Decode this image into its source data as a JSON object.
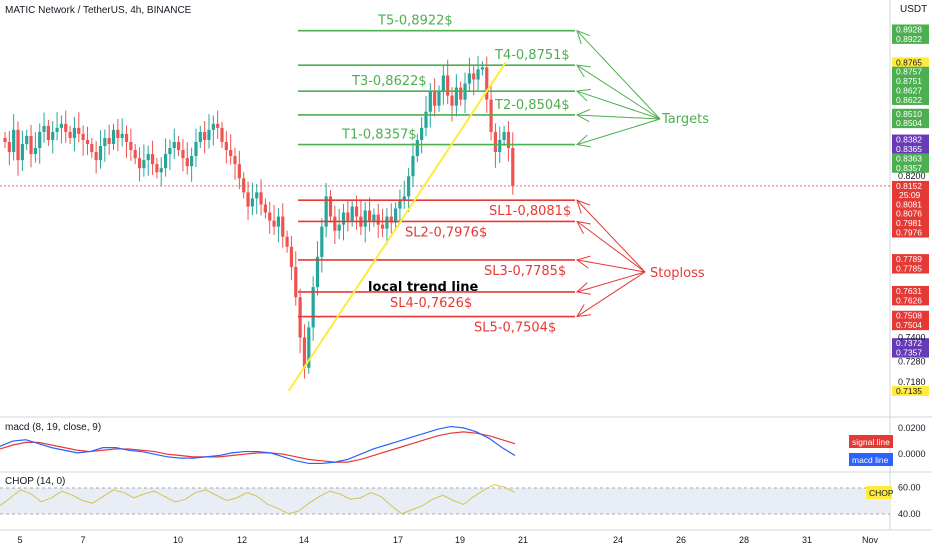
{
  "header": {
    "symbol_title": "MATIC Network / TetherUS, 4h, BINANCE",
    "currency": "USDT"
  },
  "colors": {
    "target": "#4caf50",
    "stop": "#e53935",
    "trend": "#ffeb3b",
    "candle_up": "#26a69a",
    "candle_down": "#ef5350",
    "signal_line": "#e53935",
    "macd_line": "#2962ff",
    "chop": "#d4c44e",
    "purple": "#673ab7",
    "yellow_tag": "#ffeb3b",
    "pane_bg": "#e9eef6"
  },
  "chart_data": [
    {
      "type": "line",
      "title": "",
      "y_range": [
        0.71,
        0.898
      ],
      "x_tick_labels": [
        "5",
        "7",
        "10",
        "12",
        "14",
        "17",
        "19",
        "21",
        "24",
        "26",
        "28",
        "31",
        "Nov"
      ],
      "y_tick_labels": [
        "0.8200",
        "0.7400",
        "0.7280",
        "0.7180"
      ],
      "price_tags": [
        {
          "text": "0.8928",
          "value": 0.8928,
          "color": "green"
        },
        {
          "text": "0.8922",
          "value": 0.8922,
          "color": "green"
        },
        {
          "text": "0.8765",
          "value": 0.8765,
          "color": "yellow"
        },
        {
          "text": "0.8757",
          "value": 0.8757,
          "color": "green"
        },
        {
          "text": "0.8751",
          "value": 0.8751,
          "color": "green"
        },
        {
          "text": "0.8627",
          "value": 0.8627,
          "color": "green"
        },
        {
          "text": "0.8622",
          "value": 0.8622,
          "color": "green"
        },
        {
          "text": "0.8510",
          "value": 0.851,
          "color": "green"
        },
        {
          "text": "0.8504",
          "value": 0.8504,
          "color": "green"
        },
        {
          "text": "0.8382",
          "value": 0.8382,
          "color": "purple"
        },
        {
          "text": "0.8365",
          "value": 0.8365,
          "color": "purple"
        },
        {
          "text": "0.8363",
          "value": 0.8363,
          "color": "green"
        },
        {
          "text": "0.8357",
          "value": 0.8357,
          "color": "green"
        },
        {
          "text": "0.8152",
          "sub": "25:09",
          "value": 0.8152,
          "color": "red"
        },
        {
          "text": "0.8081",
          "value": 0.8081,
          "color": "red"
        },
        {
          "text": "0.8076",
          "value": 0.8076,
          "color": "red"
        },
        {
          "text": "0.7981",
          "value": 0.7981,
          "color": "red"
        },
        {
          "text": "0.7976",
          "value": 0.7976,
          "color": "red"
        },
        {
          "text": "0.7789",
          "value": 0.7789,
          "color": "red"
        },
        {
          "text": "0.7785",
          "value": 0.7785,
          "color": "red"
        },
        {
          "text": "0.7631",
          "value": 0.7631,
          "color": "red"
        },
        {
          "text": "0.7626",
          "value": 0.7626,
          "color": "red"
        },
        {
          "text": "0.7508",
          "value": 0.7508,
          "color": "red"
        },
        {
          "text": "0.7504",
          "value": 0.7504,
          "color": "red"
        },
        {
          "text": "0.7372",
          "value": 0.7372,
          "color": "purple"
        },
        {
          "text": "0.7357",
          "value": 0.7357,
          "color": "purple"
        },
        {
          "text": "0.7135",
          "value": 0.7135,
          "color": "yellow"
        }
      ],
      "targets": [
        {
          "label": "T1-0,8357$",
          "value": 0.8357
        },
        {
          "label": "T2-0,8504$",
          "value": 0.8504
        },
        {
          "label": "T3-0,8622$",
          "value": 0.8622
        },
        {
          "label": "T4-0,8751$",
          "value": 0.8751
        },
        {
          "label": "T5-0,8922$",
          "value": 0.8922
        }
      ],
      "stoplosses": [
        {
          "label": "SL1-0,8081$",
          "value": 0.8081
        },
        {
          "label": "SL2-0,7976$",
          "value": 0.7976
        },
        {
          "label": "SL3-0,7785$",
          "value": 0.7785
        },
        {
          "label": "SL4-0,7626$",
          "value": 0.7626
        },
        {
          "label": "SL5-0,7504$",
          "value": 0.7504
        }
      ],
      "callouts": {
        "targets": "Targets",
        "stoploss": "Stoploss",
        "trend": "local trend line"
      },
      "trend_line": {
        "from": [
          40,
          0.7135
        ],
        "to": [
          67,
          0.8765
        ]
      },
      "current_price": 0.8152,
      "candles_close": [
        0.837,
        0.832,
        0.843,
        0.828,
        0.836,
        0.84,
        0.831,
        0.834,
        0.842,
        0.845,
        0.838,
        0.842,
        0.844,
        0.846,
        0.842,
        0.839,
        0.844,
        0.841,
        0.838,
        0.836,
        0.832,
        0.828,
        0.835,
        0.839,
        0.836,
        0.843,
        0.839,
        0.841,
        0.837,
        0.833,
        0.829,
        0.824,
        0.828,
        0.831,
        0.826,
        0.822,
        0.824,
        0.831,
        0.834,
        0.837,
        0.833,
        0.829,
        0.825,
        0.83,
        0.837,
        0.842,
        0.838,
        0.843,
        0.846,
        0.844,
        0.837,
        0.833,
        0.83,
        0.826,
        0.819,
        0.812,
        0.805,
        0.809,
        0.812,
        0.806,
        0.802,
        0.798,
        0.795,
        0.8,
        0.79,
        0.785,
        0.775,
        0.76,
        0.74,
        0.725,
        0.745,
        0.765,
        0.78,
        0.795,
        0.81,
        0.8,
        0.793,
        0.796,
        0.802,
        0.798,
        0.805,
        0.8,
        0.795,
        0.803,
        0.798,
        0.801,
        0.796,
        0.794,
        0.8,
        0.797,
        0.804,
        0.808,
        0.81,
        0.82,
        0.83,
        0.838,
        0.844,
        0.852,
        0.862,
        0.855,
        0.862,
        0.87,
        0.86,
        0.855,
        0.864,
        0.858,
        0.866,
        0.871,
        0.868,
        0.873,
        0.874,
        0.858,
        0.842,
        0.832,
        0.838,
        0.842,
        0.834,
        0.815
      ]
    },
    {
      "type": "line",
      "title": "macd (8, 19, close, 9)",
      "y_tick_labels": [
        "0.0200",
        "0.0000"
      ],
      "series": [
        {
          "name": "signal line",
          "values": [
            0.004,
            0.007,
            0.009,
            0.009,
            0.007,
            0.005,
            0.003,
            0.002,
            0.003,
            0.004,
            0.004,
            0.003,
            0.002,
            0.0,
            -0.001,
            -0.002,
            -0.002,
            -0.002,
            -0.001,
            0.0,
            0.001,
            0.001,
            0.0,
            -0.002,
            -0.004,
            -0.005,
            -0.006,
            -0.006,
            -0.004,
            -0.001,
            0.002,
            0.005,
            0.008,
            0.011,
            0.014,
            0.016,
            0.017,
            0.016,
            0.014,
            0.011,
            0.008
          ]
        },
        {
          "name": "macd line",
          "values": [
            0.006,
            0.01,
            0.011,
            0.008,
            0.005,
            0.003,
            0.001,
            0.002,
            0.005,
            0.005,
            0.003,
            0.002,
            0.0,
            -0.002,
            -0.003,
            -0.003,
            -0.002,
            -0.001,
            0.001,
            0.002,
            0.002,
            0.001,
            -0.002,
            -0.005,
            -0.007,
            -0.007,
            -0.006,
            -0.004,
            0.0,
            0.004,
            0.007,
            0.01,
            0.013,
            0.016,
            0.019,
            0.021,
            0.02,
            0.017,
            0.012,
            0.005,
            -0.001
          ]
        }
      ]
    },
    {
      "type": "line",
      "title": "CHOP (14, 0)",
      "y_tick_labels": [
        "60.00",
        "40.00"
      ],
      "series": [
        {
          "name": "CHOP",
          "values": [
            46,
            52,
            58,
            55,
            49,
            52,
            57,
            54,
            50,
            48,
            53,
            58,
            56,
            52,
            55,
            57,
            53,
            49,
            51,
            56,
            58,
            54,
            50,
            52,
            56,
            53,
            47,
            44,
            40,
            42,
            48,
            53,
            57,
            55,
            51,
            52,
            56,
            53,
            46,
            40,
            43,
            46,
            51,
            54,
            50,
            47,
            53,
            58,
            62,
            60,
            56
          ]
        }
      ]
    }
  ]
}
